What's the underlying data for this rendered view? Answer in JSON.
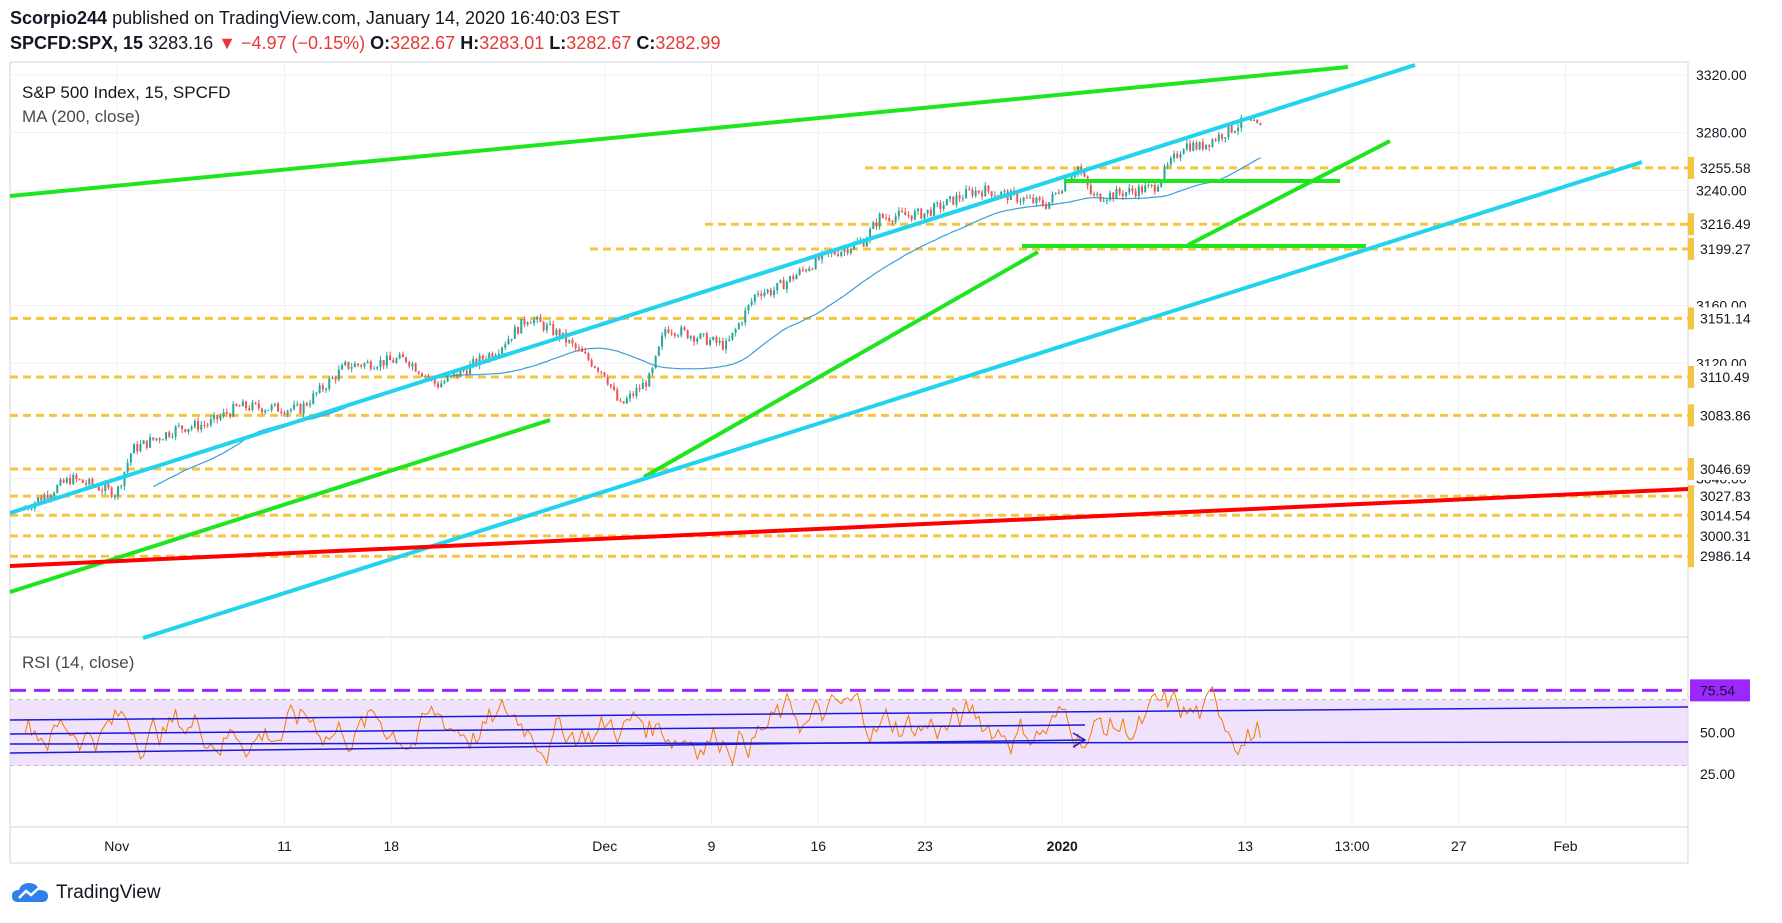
{
  "header": {
    "author": "Scorpio244",
    "published_text": "published on TradingView.com, January 14, 2020 16:40:03 EST",
    "symbol": "SPCFD:SPX, 15",
    "last": "3283.16",
    "change_arrow": "▼",
    "change": "−4.97 (−0.15%)",
    "o_label": "O:",
    "o_value": "3282.67",
    "h_label": "H:",
    "h_value": "3283.01",
    "l_label": "L:",
    "l_value": "3282.67",
    "c_label": "C:",
    "c_value": "3282.99"
  },
  "brand": {
    "name": "TradingView",
    "icon": "tradingview-cloud-icon"
  },
  "colors": {
    "up": "#26a69a",
    "down": "#ef5350",
    "green_line": "#1ee61e",
    "cyan_line": "#22d3ee",
    "red_line": "#ff0000",
    "dashed_level": "#f5c542",
    "ma": "#3c9ed6",
    "rsi": "#f57c00",
    "rsi_band": "#e9d5fb",
    "purple": "#9c27ff",
    "blue_line": "#1a1ad6"
  },
  "chart_data": [
    {
      "type": "candlestick",
      "title": "S&P 500 Index, 15, SPCFD",
      "indicator": "MA (200, close)",
      "x_tick_labels": [
        "Nov",
        "11",
        "18",
        "Dec",
        "9",
        "16",
        "23",
        "2020",
        "13",
        "13:00",
        "27",
        "Feb"
      ],
      "y_tick_labels": [
        "3320.00",
        "3280.00",
        "3240.00",
        "3160.00",
        "3120.00",
        "3040.00"
      ],
      "price_level_tags": [
        "3255.58",
        "3216.49",
        "3199.27",
        "3151.14",
        "3110.49",
        "3083.86",
        "3046.69",
        "3027.83",
        "3014.54",
        "3000.31",
        "2986.14"
      ],
      "ylim": [
        2980,
        3328
      ],
      "close_path": [
        [
          "Oct 25",
          3020
        ],
        [
          "Oct 28",
          3040
        ],
        [
          "Oct 31",
          3030
        ],
        [
          "Nov 1",
          3060
        ],
        [
          "Nov 4",
          3075
        ],
        [
          "Nov 6",
          3078
        ],
        [
          "Nov 8",
          3090
        ],
        [
          "Nov 12",
          3088
        ],
        [
          "Nov 15",
          3118
        ],
        [
          "Nov 19",
          3123
        ],
        [
          "Nov 21",
          3105
        ],
        [
          "Nov 22",
          3110
        ],
        [
          "Nov 25",
          3130
        ],
        [
          "Nov 27",
          3152
        ],
        [
          "Nov 29",
          3140
        ],
        [
          "Dec 2",
          3113
        ],
        [
          "Dec 3",
          3090
        ],
        [
          "Dec 5",
          3110
        ],
        [
          "Dec 6",
          3145
        ],
        [
          "Dec 10",
          3132
        ],
        [
          "Dec 12",
          3170
        ],
        [
          "Dec 13",
          3170
        ],
        [
          "Dec 16",
          3192
        ],
        [
          "Dec 19",
          3205
        ],
        [
          "Dec 20",
          3221
        ],
        [
          "Dec 23",
          3224
        ],
        [
          "Dec 26",
          3239
        ],
        [
          "Dec 27",
          3240
        ],
        [
          "Dec 31",
          3230
        ],
        [
          "Jan 2",
          3257
        ],
        [
          "Jan 3",
          3235
        ],
        [
          "Jan 7",
          3242
        ],
        [
          "Jan 9",
          3272
        ],
        [
          "Jan 10",
          3270
        ],
        [
          "Jan 13",
          3288
        ],
        [
          "Jan 14",
          3283
        ]
      ]
    },
    {
      "type": "line",
      "title": "RSI (14, close)",
      "levels": {
        "upper": 70,
        "lower": 30
      },
      "y_tick_labels": [
        "50.00",
        "25.00"
      ],
      "current_value_tag": "75.54",
      "ylim": [
        0,
        100
      ]
    }
  ]
}
